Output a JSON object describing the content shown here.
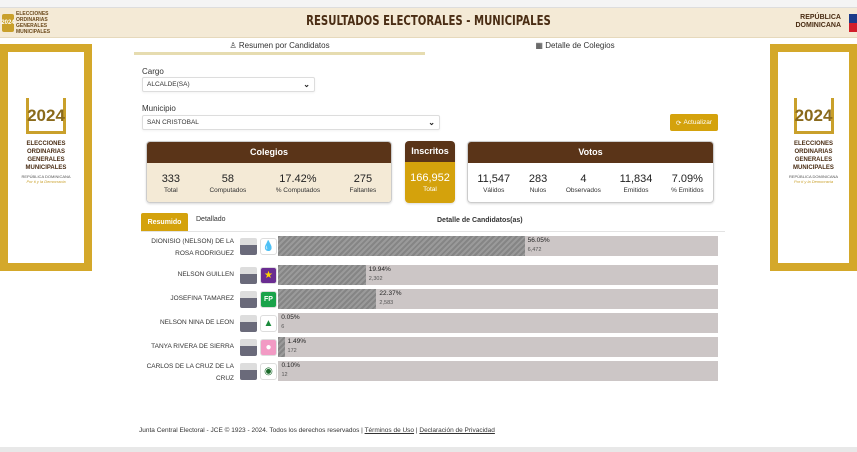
{
  "header": {
    "logo_text": "ELECCIONES ORDINARIAS GENERALES MUNICIPALES",
    "logo_year": "2024",
    "title": "RESULTADOS ELECTORALES - MUNICIPALES",
    "country_line1": "REPÚBLICA",
    "country_line2": "DOMINICANA"
  },
  "side_banner": {
    "year": "2024",
    "title": "ELECCIONES ORDINARIAS GENERALES MUNICIPALES",
    "subtitle": "REPÚBLICA DOMINICANA",
    "slogan": "Por ti y la Democracia"
  },
  "tabs": [
    {
      "label": "Resumen por Candidatos",
      "active": true
    },
    {
      "label": "Detalle de Colegios",
      "active": false
    }
  ],
  "filters": {
    "cargo_label": "Cargo",
    "cargo_value": "ALCALDE(SA)",
    "municipio_label": "Municipio",
    "municipio_value": "SAN CRISTOBAL",
    "refresh_label": "Actualizar"
  },
  "colegios": {
    "title": "Colegios",
    "stats": [
      {
        "value": "333",
        "label": "Total"
      },
      {
        "value": "58",
        "label": "Computados"
      },
      {
        "value": "17.42%",
        "label": "% Computados"
      },
      {
        "value": "275",
        "label": "Faltantes"
      }
    ]
  },
  "inscritos": {
    "title": "Inscritos",
    "value": "166,952",
    "label": "Total"
  },
  "votos": {
    "title": "Votos",
    "stats": [
      {
        "value": "11,547",
        "label": "Válidos"
      },
      {
        "value": "283",
        "label": "Nulos"
      },
      {
        "value": "4",
        "label": "Observados"
      },
      {
        "value": "11,834",
        "label": "Emitidos"
      },
      {
        "value": "7.09%",
        "label": "% Emitidos"
      }
    ]
  },
  "subtabs": {
    "resumido": "Resumido",
    "detallado": "Detallado",
    "detail_title": "Detalle de Candidatos(as)"
  },
  "candidates": [
    {
      "name": "DIONISIO (NELSON) DE LA ROSA RODRIGUEZ",
      "percent": 56.05,
      "percent_label": "56.05%",
      "votes": "6,472",
      "party_color": "#ffffff",
      "party_icon": "drop-logo"
    },
    {
      "name": "NELSON GUILLEN",
      "percent": 19.94,
      "percent_label": "19.94%",
      "votes": "2,302",
      "party_color": "#6a2c91",
      "party_icon": "star-logo"
    },
    {
      "name": "JOSEFINA TAMAREZ",
      "percent": 22.37,
      "percent_label": "22.37%",
      "votes": "2,583",
      "party_color": "#1aa34a",
      "party_icon": "fp-logo"
    },
    {
      "name": "NELSON NINA DE LEON",
      "percent": 0.05,
      "percent_label": "0.05%",
      "votes": "6",
      "party_color": "#ffffff",
      "party_icon": "map-logo"
    },
    {
      "name": "TANYA RIVERA DE SIERRA",
      "percent": 1.49,
      "percent_label": "1.49%",
      "votes": "172",
      "party_color": "#f29ac4",
      "party_icon": "circle-logo"
    },
    {
      "name": "CARLOS DE LA CRUZ DE LA CRUZ",
      "percent": 0.1,
      "percent_label": "0.10%",
      "votes": "12",
      "party_color": "#ffffff",
      "party_icon": "globe-logo"
    }
  ],
  "footer": {
    "text": "Junta Central Electoral - JCE © 1923 - 2024. Todos los derechos reservados | ",
    "terms": "Términos de Uso",
    "separator": " | ",
    "privacy": "Declaración de Privacidad"
  }
}
